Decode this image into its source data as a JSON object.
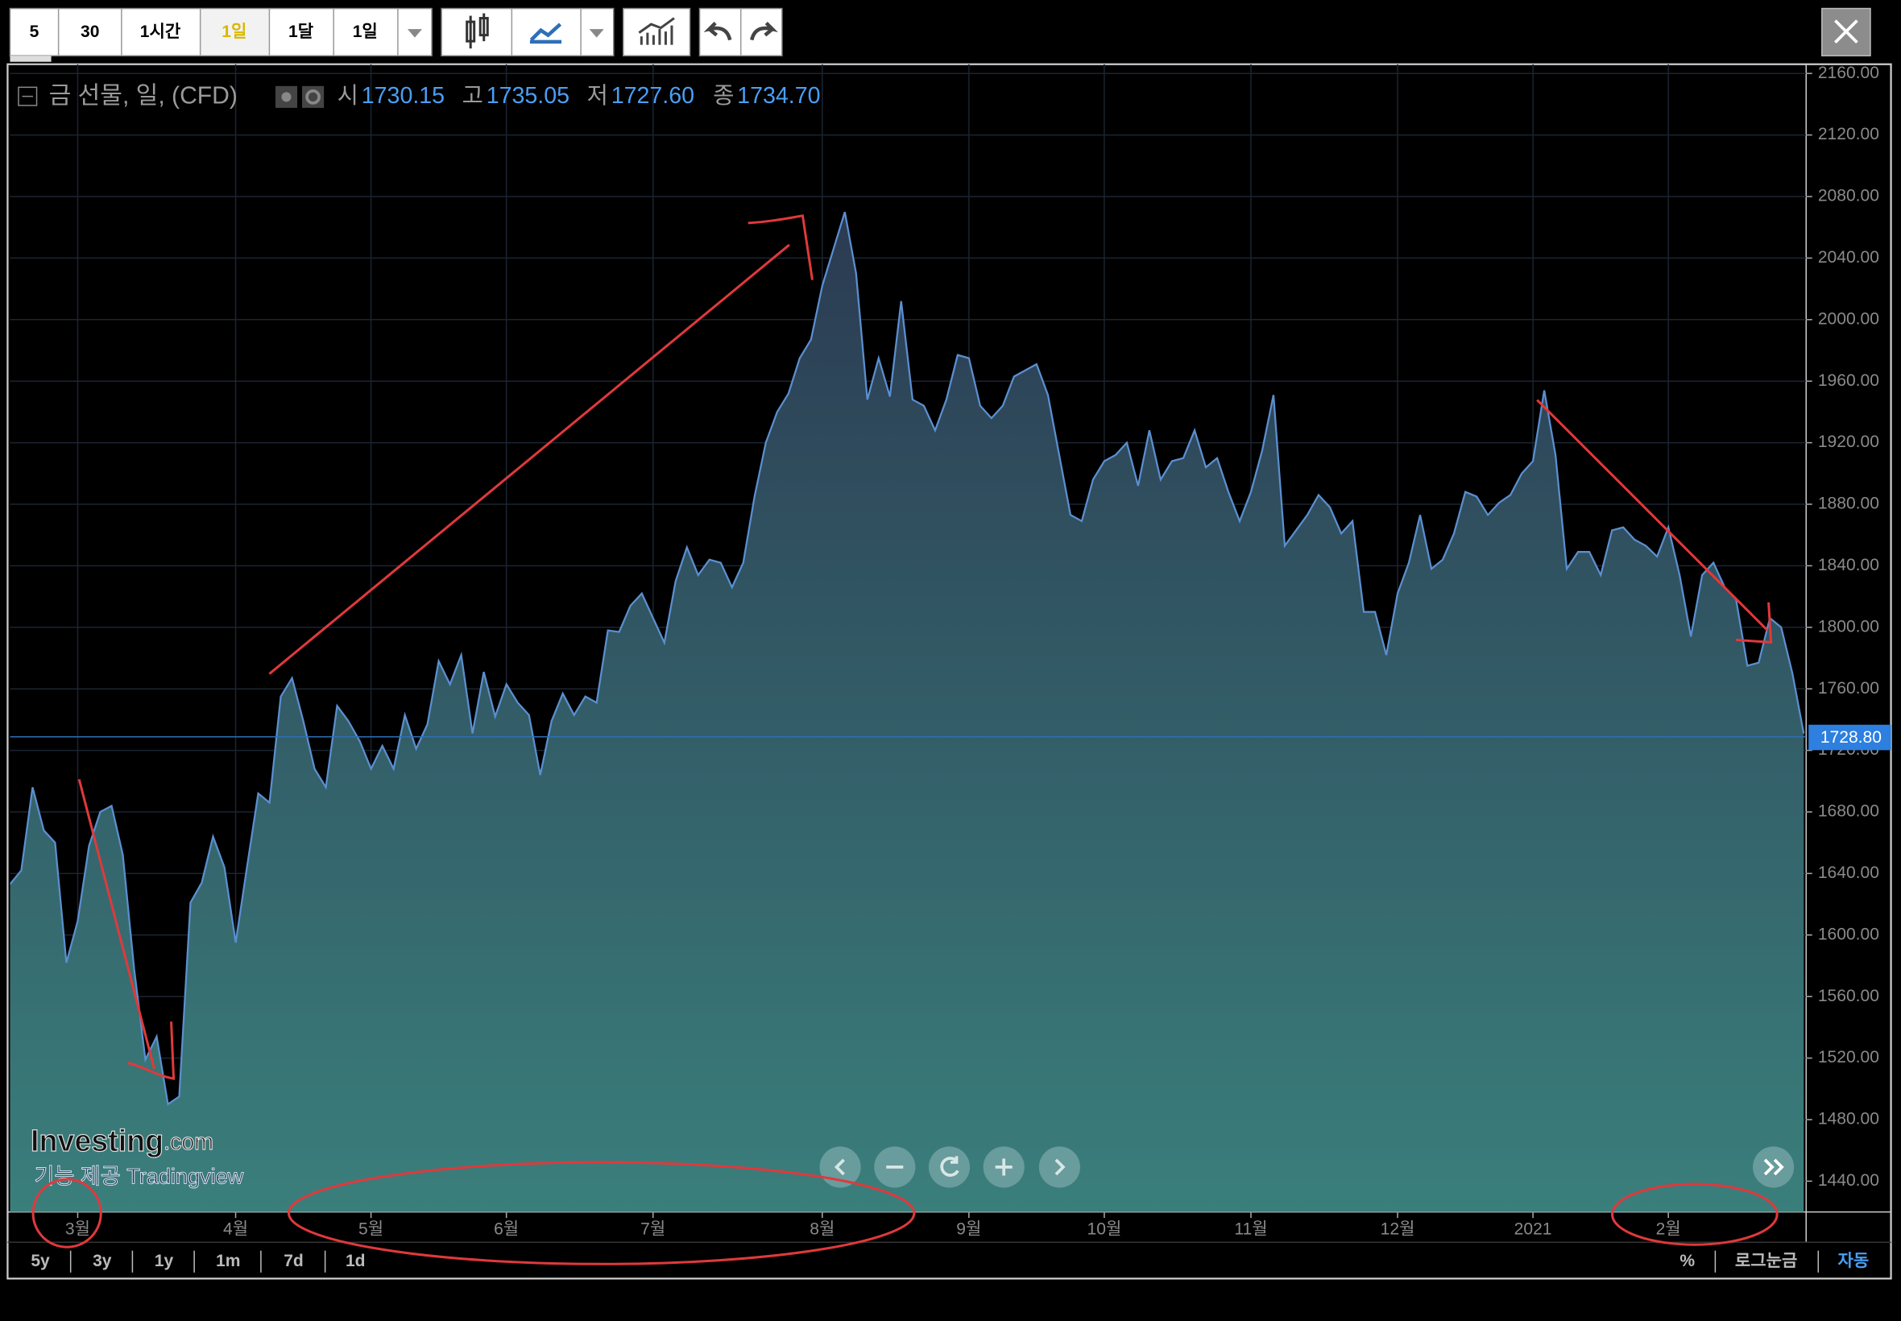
{
  "toolbar": {
    "intervals": [
      "5",
      "30",
      "1시간",
      "1일",
      "1달",
      "1일"
    ]
  },
  "legend": {
    "title": "금 선물, 일, (CFD)",
    "fields": [
      {
        "label": "시",
        "value": "1730.15"
      },
      {
        "label": "고",
        "value": "1735.05"
      },
      {
        "label": "저",
        "value": "1727.60"
      },
      {
        "label": "종",
        "value": "1734.70"
      }
    ]
  },
  "watermark": {
    "brand": "Investing",
    "domain": ".com",
    "credit": "기능 제공 Tradingview"
  },
  "chart_data": {
    "type": "area",
    "color": "#5b8fd0",
    "values": [
      1633,
      1642,
      1696,
      1668,
      1660,
      1582,
      1609,
      1658,
      1680,
      1684,
      1652,
      1578,
      1519,
      1534,
      1490,
      1495,
      1621,
      1634,
      1664,
      1644,
      1595,
      1644,
      1692,
      1686,
      1755,
      1767,
      1739,
      1708,
      1696,
      1749,
      1739,
      1726,
      1708,
      1723,
      1708,
      1743,
      1721,
      1737,
      1778,
      1763,
      1782,
      1731,
      1771,
      1742,
      1763,
      1751,
      1743,
      1704,
      1739,
      1757,
      1743,
      1755,
      1751,
      1798,
      1797,
      1814,
      1822,
      1806,
      1790,
      1830,
      1852,
      1834,
      1844,
      1842,
      1826,
      1842,
      1885,
      1920,
      1940,
      1952,
      1975,
      1987,
      2022,
      2046,
      2070,
      2030,
      1948,
      1975,
      1950,
      2012,
      1948,
      1944,
      1928,
      1948,
      1977,
      1975,
      1944,
      1936,
      1944,
      1963,
      1967,
      1971,
      1951,
      1912,
      1873,
      1869,
      1896,
      1908,
      1912,
      1920,
      1892,
      1928,
      1896,
      1908,
      1910,
      1928,
      1904,
      1910,
      1888,
      1869,
      1888,
      1915,
      1951,
      1853,
      1863,
      1873,
      1886,
      1878,
      1861,
      1869,
      1810,
      1810,
      1782,
      1822,
      1842,
      1873,
      1838,
      1844,
      1861,
      1888,
      1885,
      1873,
      1881,
      1886,
      1900,
      1908,
      1954,
      1912,
      1838,
      1849,
      1849,
      1834,
      1863,
      1865,
      1857,
      1853,
      1846,
      1865,
      1834,
      1794,
      1834,
      1842,
      1826,
      1818,
      1775,
      1777,
      1806,
      1800,
      1770,
      1731
    ],
    "xlim": [
      0,
      159
    ],
    "xticks": [
      {
        "value": 6,
        "label": "3월"
      },
      {
        "value": 20,
        "label": "4월"
      },
      {
        "value": 32,
        "label": "5월"
      },
      {
        "value": 44,
        "label": "6월"
      },
      {
        "value": 57,
        "label": "7월"
      },
      {
        "value": 72,
        "label": "8월"
      },
      {
        "value": 85,
        "label": "9월"
      },
      {
        "value": 97,
        "label": "10월"
      },
      {
        "value": 110,
        "label": "11월"
      },
      {
        "value": 123,
        "label": "12월"
      },
      {
        "value": 135,
        "label": "2021"
      },
      {
        "value": 147,
        "label": "2월"
      }
    ],
    "ylim": [
      1420,
      2166
    ],
    "yticks": [
      {
        "value": 1440,
        "label": "1440.00"
      },
      {
        "value": 1480,
        "label": "1480.00"
      },
      {
        "value": 1520,
        "label": "1520.00"
      },
      {
        "value": 1560,
        "label": "1560.00"
      },
      {
        "value": 1600,
        "label": "1600.00"
      },
      {
        "value": 1640,
        "label": "1640.00"
      },
      {
        "value": 1680,
        "label": "1680.00"
      },
      {
        "value": 1720,
        "label": "1720.00"
      },
      {
        "value": 1760,
        "label": "1760.00"
      },
      {
        "value": 1800,
        "label": "1800.00"
      },
      {
        "value": 1840,
        "label": "1840.00"
      },
      {
        "value": 1880,
        "label": "1880.00"
      },
      {
        "value": 1920,
        "label": "1920.00"
      },
      {
        "value": 1960,
        "label": "1960.00"
      },
      {
        "value": 2000,
        "label": "2000.00"
      },
      {
        "value": 2040,
        "label": "2040.00"
      },
      {
        "value": 2080,
        "label": "2080.00"
      },
      {
        "value": 2120,
        "label": "2120.00"
      },
      {
        "value": 2160,
        "label": "2160.00"
      }
    ],
    "grid": true,
    "last_price": {
      "value": 1728.8,
      "label": "1728.80"
    }
  },
  "range_buttons": [
    "5y",
    "3y",
    "1y",
    "1m",
    "7d",
    "1d"
  ],
  "scale_options": [
    "%",
    "로그눈금",
    "자동"
  ]
}
